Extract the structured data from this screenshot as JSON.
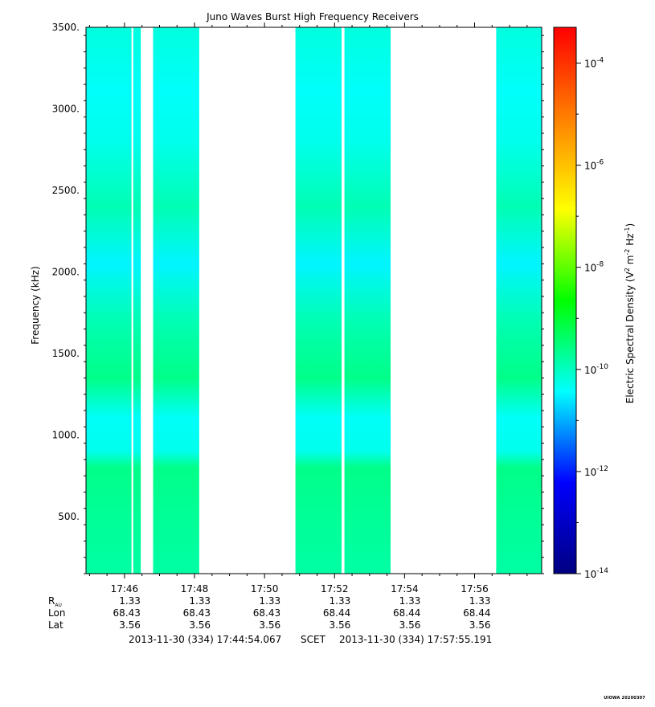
{
  "chart_data": {
    "type": "heatmap",
    "title": "Juno Waves Burst High Frequency Receivers",
    "ylabel": "Frequency (kHz)",
    "ylim": [
      150,
      3500
    ],
    "yticks": [
      {
        "value": 500,
        "label": "500."
      },
      {
        "value": 1000,
        "label": "1000."
      },
      {
        "value": 1500,
        "label": "1500."
      },
      {
        "value": 2000,
        "label": "2000."
      },
      {
        "value": 2500,
        "label": "2500."
      },
      {
        "value": 3000,
        "label": "3000."
      },
      {
        "value": 3500,
        "label": "3500."
      }
    ],
    "xlim": [
      "17:44:54",
      "17:57:55"
    ],
    "xticks": [
      {
        "time": "17:46",
        "label": "17:46"
      },
      {
        "time": "17:48",
        "label": "17:48"
      },
      {
        "time": "17:50",
        "label": "17:50"
      },
      {
        "time": "17:52",
        "label": "17:52"
      },
      {
        "time": "17:54",
        "label": "17:54"
      },
      {
        "time": "17:56",
        "label": "17:56"
      }
    ],
    "data_segments": [
      {
        "start": "17:44:54",
        "end": "17:46:12"
      },
      {
        "start": "17:46:15",
        "end": "17:46:28"
      },
      {
        "start": "17:46:49",
        "end": "17:48:08"
      },
      {
        "start": "17:50:53",
        "end": "17:52:12"
      },
      {
        "start": "17:52:17",
        "end": "17:53:36"
      },
      {
        "start": "17:56:37",
        "end": "17:57:55"
      }
    ],
    "colorbar": {
      "label_prefix": "Electric Spectral Density (V",
      "label_sup1": "2",
      "label_mid1": " m",
      "label_sup2": "-2",
      "label_mid2": " Hz",
      "label_sup3": "-1",
      "label_suffix": ")",
      "log_min": -14,
      "log_max": -3.3,
      "ticks": [
        {
          "exp": -14,
          "base": "10",
          "sup": "-14"
        },
        {
          "exp": -12,
          "base": "10",
          "sup": "-12"
        },
        {
          "exp": -10,
          "base": "10",
          "sup": "-10"
        },
        {
          "exp": -8,
          "base": "10",
          "sup": "-8"
        },
        {
          "exp": -6,
          "base": "10",
          "sup": "-6"
        },
        {
          "exp": -4,
          "base": "10",
          "sup": "-4"
        }
      ],
      "colors": [
        "#000080",
        "#0000ff",
        "#00ffff",
        "#00ff00",
        "#ffff00",
        "#ff8000",
        "#ff0000"
      ]
    },
    "intensity_profile": [
      {
        "freq": 150,
        "log_value": -9.8
      },
      {
        "freq": 500,
        "log_value": -9.7
      },
      {
        "freq": 800,
        "log_value": -9.6
      },
      {
        "freq": 900,
        "log_value": -10.3
      },
      {
        "freq": 1100,
        "log_value": -10.4
      },
      {
        "freq": 1350,
        "log_value": -9.6
      },
      {
        "freq": 1700,
        "log_value": -9.9
      },
      {
        "freq": 2050,
        "log_value": -10.5
      },
      {
        "freq": 2400,
        "log_value": -9.9
      },
      {
        "freq": 2800,
        "log_value": -10.3
      },
      {
        "freq": 3100,
        "log_value": -10.4
      },
      {
        "freq": 3500,
        "log_value": -10.2
      }
    ]
  },
  "ephemeris": {
    "rows": [
      {
        "label_main": "R",
        "label_sub": "AU",
        "values": [
          "1.33",
          "1.33",
          "1.33",
          "1.33",
          "1.33",
          "1.33"
        ]
      },
      {
        "label_main": "Lon",
        "label_sub": "",
        "values": [
          "68.43",
          "68.43",
          "68.43",
          "68.44",
          "68.44",
          "68.44"
        ]
      },
      {
        "label_main": "Lat",
        "label_sub": "",
        "values": [
          "3.56",
          "3.56",
          "3.56",
          "3.56",
          "3.56",
          "3.56"
        ]
      }
    ]
  },
  "time_range": {
    "start": "2013-11-30 (334) 17:44:54.067",
    "system": "SCET",
    "end": "2013-11-30 (334) 17:57:55.191"
  },
  "stamp": "UIOWA 20200307"
}
